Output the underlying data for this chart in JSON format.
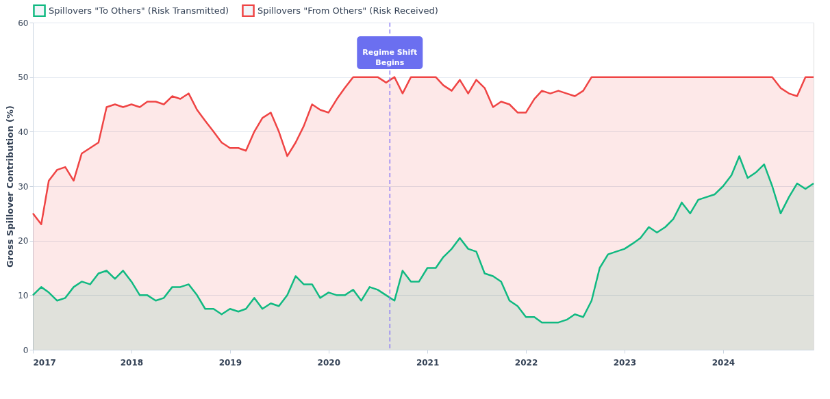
{
  "chart_data": {
    "type": "area",
    "ylabel": "Gross Spillover Contribution (%)",
    "x": [
      "2017-01",
      "2017-02",
      "2017-03",
      "2017-04",
      "2017-05",
      "2017-06",
      "2017-07",
      "2017-08",
      "2017-09",
      "2017-10",
      "2017-11",
      "2017-12",
      "2018-01",
      "2018-02",
      "2018-03",
      "2018-04",
      "2018-05",
      "2018-06",
      "2018-07",
      "2018-08",
      "2018-09",
      "2018-10",
      "2018-11",
      "2018-12",
      "2019-01",
      "2019-02",
      "2019-03",
      "2019-04",
      "2019-05",
      "2019-06",
      "2019-07",
      "2019-08",
      "2019-09",
      "2019-10",
      "2019-11",
      "2019-12",
      "2020-01",
      "2020-02",
      "2020-03",
      "2020-04",
      "2020-05",
      "2020-06",
      "2020-07",
      "2020-08",
      "2020-09",
      "2020-10",
      "2020-11",
      "2020-12",
      "2021-01",
      "2021-02",
      "2021-03",
      "2021-04",
      "2021-05",
      "2021-06",
      "2021-07",
      "2021-08",
      "2021-09",
      "2021-10",
      "2021-11",
      "2021-12",
      "2022-01",
      "2022-02",
      "2022-03",
      "2022-04",
      "2022-05",
      "2022-06",
      "2022-07",
      "2022-08",
      "2022-09",
      "2022-10",
      "2022-11",
      "2022-12",
      "2023-01",
      "2023-02",
      "2023-03",
      "2023-04",
      "2023-05",
      "2023-06",
      "2023-07",
      "2023-08",
      "2023-09",
      "2023-10",
      "2023-11",
      "2023-12",
      "2024-01",
      "2024-02",
      "2024-03",
      "2024-04",
      "2024-05",
      "2024-06",
      "2024-07",
      "2024-08",
      "2024-09",
      "2024-10",
      "2024-11",
      "2024-12"
    ],
    "series": [
      {
        "name": "Spillovers \"To Others\" (Risk Transmitted)",
        "color": "#10b981",
        "values": [
          10,
          11.5,
          10.5,
          9,
          9.5,
          11.5,
          12.5,
          12,
          14,
          14.5,
          13,
          14.5,
          12.5,
          10,
          10,
          9,
          9.5,
          11.5,
          11.5,
          12,
          10,
          7.5,
          7.5,
          6.5,
          7.5,
          7,
          7.5,
          9.5,
          7.5,
          8.5,
          8,
          10,
          13.5,
          12,
          12,
          9.5,
          10.5,
          10,
          10,
          11,
          9,
          11.5,
          11,
          10,
          9,
          14.5,
          12.5,
          12.5,
          15,
          15,
          17,
          18.5,
          20.5,
          18.5,
          18,
          14,
          13.5,
          12.5,
          9,
          8,
          6,
          6,
          5,
          5,
          5,
          5.5,
          6.5,
          6,
          9,
          15,
          17.5,
          18,
          18.5,
          19.5,
          20.5,
          22.5,
          21.5,
          22.5,
          24,
          27,
          25,
          27.5,
          28,
          28.5,
          30,
          32,
          35.5,
          31.5,
          32.5,
          34,
          30,
          25,
          28,
          30.5,
          29.5,
          30.5
        ]
      },
      {
        "name": "Spillovers \"From Others\" (Risk Received)",
        "color": "#ef4444",
        "values": [
          25,
          23,
          31,
          33,
          33.5,
          31,
          36,
          37,
          38,
          44.5,
          45,
          44.5,
          45,
          44.5,
          45.5,
          45.5,
          45,
          46.5,
          46,
          47,
          44,
          42,
          40,
          38,
          37,
          37,
          36.5,
          40,
          42.5,
          43.5,
          40,
          35.5,
          38,
          41,
          45,
          44,
          43.5,
          46,
          48,
          50,
          50,
          50,
          50,
          49,
          50,
          47,
          50,
          50,
          50,
          50,
          48.5,
          47.5,
          49.5,
          47,
          49.5,
          48,
          44.5,
          45.5,
          45,
          43.5,
          43.5,
          46,
          47.5,
          47,
          47.5,
          47,
          46.5,
          47.5,
          50,
          50,
          50,
          50,
          50,
          50,
          50,
          50,
          50,
          50,
          50,
          50,
          50,
          50,
          50,
          50,
          50,
          50,
          50,
          50,
          50,
          50,
          50,
          48,
          47,
          46.5,
          50,
          50
        ]
      }
    ],
    "xlim": [
      "2017-01",
      "2024-12"
    ],
    "xticks": [
      "2017",
      "2018",
      "2019",
      "2020",
      "2021",
      "2022",
      "2023",
      "2024"
    ],
    "ylim": [
      0,
      60
    ],
    "yticks": [
      0,
      10,
      20,
      30,
      40,
      50,
      60
    ],
    "ref_lines": [
      {
        "axis": "x",
        "value": "2020-08-15",
        "label": "Regime Shift Begins",
        "color": "#8b7cf6",
        "line_style": "dashed"
      }
    ],
    "grid": "y",
    "legend": "top left"
  }
}
